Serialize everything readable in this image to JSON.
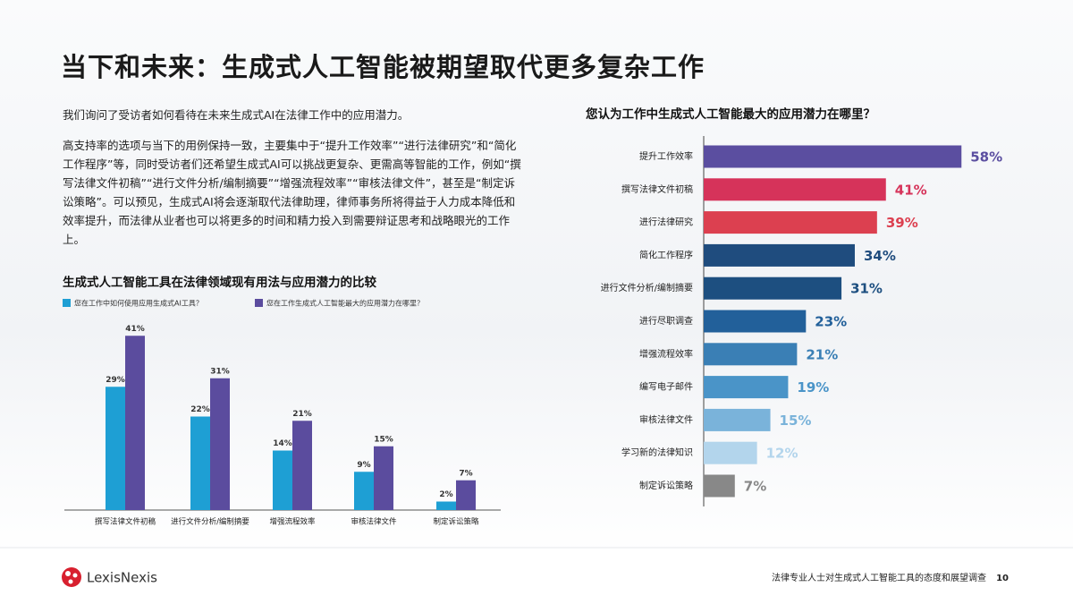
{
  "header": {
    "title": "当下和未来：生成式人工智能被期望取代更多复杂工作"
  },
  "body": {
    "paragraphs": [
      "我们询问了受访者如何看待在未来生成式AI在法律工作中的应用潜力。",
      "高支持率的选项与当下的用例保持一致，主要集中于“提升工作效率”“进行法律研究”和“简化工作程序”等，同时受访者们还希望生成式AI可以挑战更复杂、更需高等智能的工作，例如“撰写法律文件初稿”“进行文件分析/编制摘要”“增强流程效率”“审核法律文件”，甚至是“制定诉讼策略”。可以预见，生成式AI将会逐渐取代法律助理，律师事务所将得益于人力成本降低和效率提升，而法律从业者也可以将更多的时间和精力投入到需要辩证思考和战略眼光的工作上。"
    ]
  },
  "chart_data": [
    {
      "type": "grouped-bar",
      "title": "生成式人工智能工具在法律领域现有用法与应用潜力的比较",
      "categories": [
        "撰写法律文件初稿",
        "进行文件分析/编制摘要",
        "增强流程效率",
        "审核法律文件",
        "制定诉讼策略"
      ],
      "series": [
        {
          "name": "您在工作中如何使用应用生成式AI工具？",
          "color": "#1e9fd4",
          "values": [
            29,
            22,
            14,
            9,
            2
          ],
          "value_labels": [
            "29%",
            "22%",
            "14%",
            "9%",
            "2%"
          ]
        },
        {
          "name": "您在工作生成式人工智能最大的应用潜力在哪里？",
          "color": "#5b4c9e",
          "values": [
            41,
            31,
            21,
            15,
            7
          ],
          "value_labels": [
            "41%",
            "31%",
            "21%",
            "15%",
            "7%"
          ]
        }
      ]
    },
    {
      "type": "hbar",
      "title": "您认为工作中生成式人工智能最大的应用潜力在哪里？",
      "categories": [
        "提升工作效率",
        "撰写法律文件初稿",
        "进行法律研究",
        "简化工作程序",
        "进行文件分析/编制摘要",
        "进行尽职调查",
        "增强流程效率",
        "编写电子邮件",
        "审核法律文件",
        "学习新的法律知识",
        "制定诉讼策略"
      ],
      "values": [
        58,
        41,
        39,
        34,
        31,
        23,
        21,
        19,
        15,
        12,
        7
      ],
      "value_labels": [
        "58%",
        "41%",
        "39%",
        "34%",
        "31%",
        "23%",
        "21%",
        "19%",
        "15%",
        "12%",
        "7%"
      ],
      "colors": [
        "#5b4ea0",
        "#d6335a",
        "#dc4050",
        "#1f4c7e",
        "#1d4f80",
        "#22609a",
        "#3a7fb5",
        "#4a94c8",
        "#7ab3da",
        "#b3d5ec",
        "#888888"
      ]
    }
  ],
  "footer": {
    "logo": "LexisNexis",
    "text": "法律专业人士对生成式人工智能工具的态度和展望调查",
    "page": "10"
  }
}
